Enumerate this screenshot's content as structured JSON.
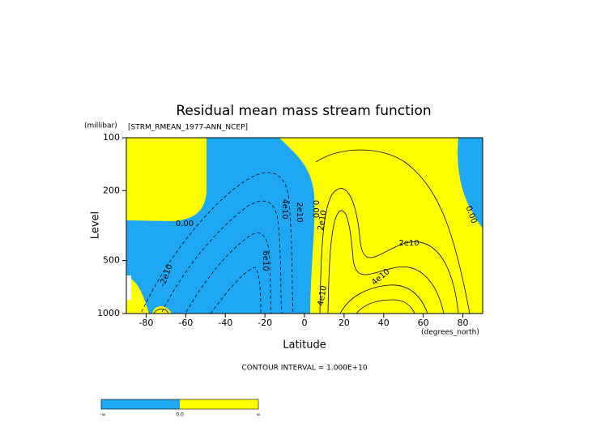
{
  "chart_data": {
    "type": "contour",
    "title": "Residual mean mass stream function",
    "subtitle": "[STRM_RMEAN_1977-ANN_NCEP]",
    "x_label": "Latitude",
    "x_units": "(degrees_north)",
    "y_label": "Level",
    "y_units": "(millibar)",
    "footnote": "CONTOUR INTERVAL = 1.000E+10",
    "xlim": [
      -90,
      90
    ],
    "xticks": [
      -80,
      -60,
      -40,
      -20,
      0,
      20,
      40,
      60,
      80
    ],
    "ylim": [
      1000,
      100
    ],
    "yticks": [
      100,
      200,
      500,
      1000
    ],
    "y_log": true,
    "negative_color": "#1ea7f2",
    "positive_color": "#ffff00",
    "contour_labels": [
      "0.00",
      "2e10",
      "4e10",
      "-2e10",
      "6e10",
      "0.00",
      "2e10",
      "2e10",
      "4e10",
      "4e10",
      "0.00"
    ],
    "colorbar_labels": [
      "-∞",
      "0.0",
      "∞"
    ]
  }
}
